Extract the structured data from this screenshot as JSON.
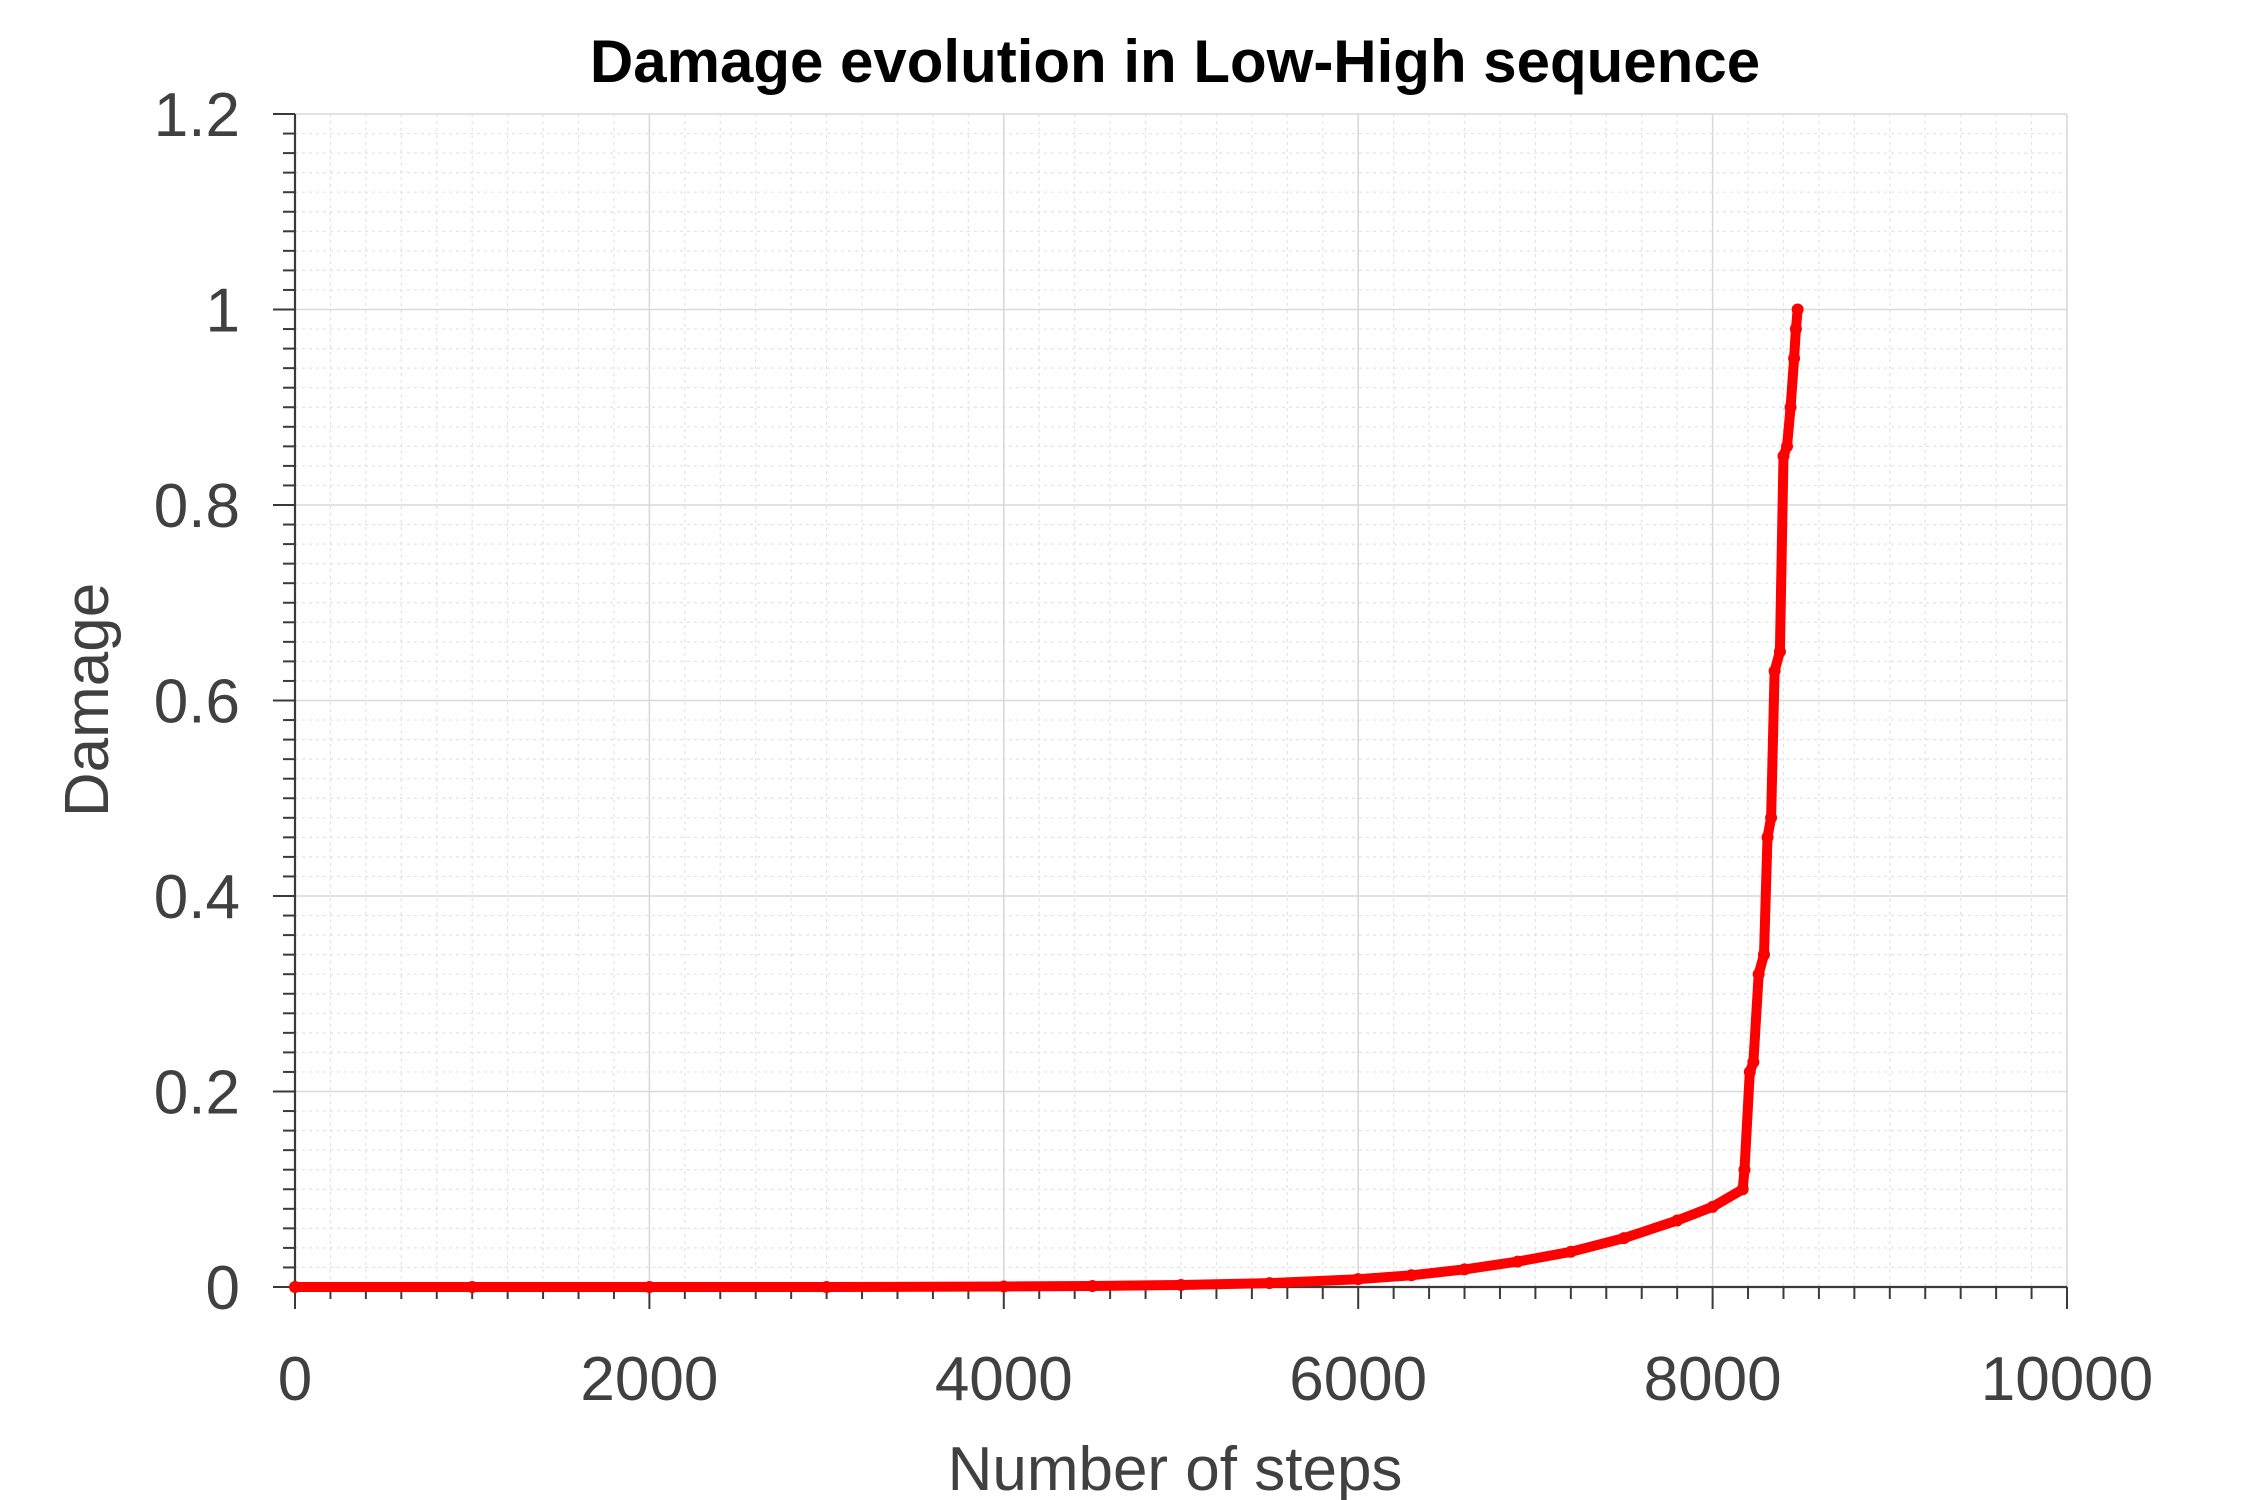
{
  "chart_data": {
    "type": "line",
    "title": "Damage evolution in Low-High sequence",
    "xlabel": "Number of steps",
    "ylabel": "Damage",
    "xlim": [
      0,
      10000
    ],
    "ylim": [
      0,
      1.2
    ],
    "xticks": [
      0,
      2000,
      4000,
      6000,
      8000,
      10000
    ],
    "xtick_labels": [
      "0",
      "2000",
      "4000",
      "6000",
      "8000",
      "10000"
    ],
    "yticks": [
      0,
      0.2,
      0.4,
      0.6,
      0.8,
      1.0,
      1.2
    ],
    "ytick_labels": [
      "0",
      "0.2",
      "0.4",
      "0.6",
      "0.8",
      "1",
      "1.2"
    ],
    "grid": true,
    "minor_grid": true,
    "legend": "none",
    "series": [
      {
        "color": "#ff0000",
        "marker": "dot",
        "x": [
          0,
          1000,
          2000,
          3000,
          4000,
          4500,
          5000,
          5500,
          6000,
          6300,
          6600,
          6900,
          7200,
          7500,
          7800,
          8000,
          8170,
          8180,
          8210,
          8230,
          8260,
          8290,
          8310,
          8330,
          8350,
          8380,
          8400,
          8420,
          8440,
          8460,
          8470,
          8480
        ],
        "y": [
          0,
          0,
          0,
          0,
          0.0005,
          0.001,
          0.002,
          0.004,
          0.008,
          0.012,
          0.018,
          0.026,
          0.036,
          0.05,
          0.068,
          0.082,
          0.1,
          0.12,
          0.22,
          0.23,
          0.32,
          0.34,
          0.46,
          0.48,
          0.63,
          0.65,
          0.85,
          0.86,
          0.9,
          0.95,
          0.98,
          1.0
        ]
      }
    ]
  }
}
